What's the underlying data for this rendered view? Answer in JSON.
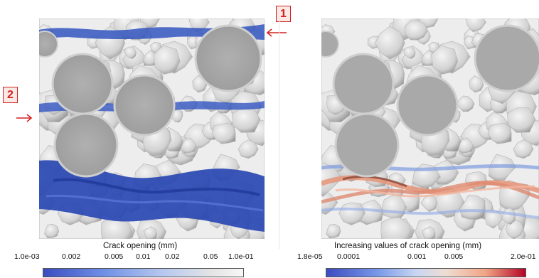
{
  "markers": [
    {
      "label": "1",
      "direction": "left"
    },
    {
      "label": "2",
      "direction": "right"
    }
  ],
  "left_panel": {
    "colorbar": {
      "title": "Crack opening (mm)",
      "ticks": [
        "1.0e-03",
        "0.002",
        "0.005",
        "0.01",
        "0.02",
        "0.05",
        "1.0e-01"
      ],
      "scale": "log",
      "gradient": [
        "#3b4cc0",
        "#8aa8f0",
        "#dcdcdc",
        "#f5f5f5"
      ]
    }
  },
  "right_panel": {
    "colorbar": {
      "title": "Increasing values of crack opening (mm)",
      "ticks": [
        "1.8e-05",
        "0.0001",
        "0.001",
        "0.005",
        "2.0e-01"
      ],
      "scale": "log",
      "gradient": [
        "#3b4cc0",
        "#a5c2f5",
        "#efdcd3",
        "#f0a585",
        "#b40426"
      ]
    }
  },
  "colors": {
    "crack_blue": "#2d4fb8",
    "aggregate_grey": "#dcdcdc",
    "section_grey": "#a9a9a9",
    "marker_red": "#d42020",
    "crack_salmon": "#e89478"
  }
}
